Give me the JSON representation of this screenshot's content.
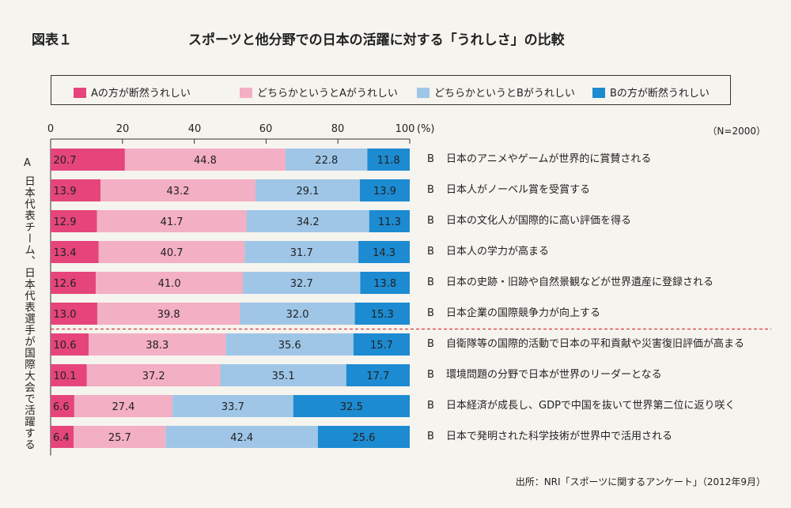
{
  "header": {
    "figure_label": "図表１",
    "title": "スポーツと他分野での日本の活躍に対する「うれしさ」の比較"
  },
  "chart_data": {
    "type": "bar",
    "orientation": "horizontal",
    "stacked": true,
    "percent_unit": "(%)",
    "n_label": "（N=2000）",
    "xlim": [
      0,
      100
    ],
    "ticks": [
      "0",
      "20",
      "40",
      "60",
      "80",
      "100"
    ],
    "legend": [
      {
        "name": "Aの方が断然うれしい",
        "color": "#e5457a"
      },
      {
        "name": "どちらかというとAがうれしい",
        "color": "#f3afc4"
      },
      {
        "name": "どちらかというとBがうれしい",
        "color": "#9fc6e7"
      },
      {
        "name": "Bの方が断然うれしい",
        "color": "#1c8bd1"
      }
    ],
    "a_letter": "A",
    "a_label": "日本代表チーム、日本代表選手が国際大会で活躍する",
    "b_letter": "B",
    "rows": [
      {
        "b_text": "日本のアニメやゲームが世界的に賞賛される",
        "values": [
          20.7,
          44.8,
          22.8,
          11.8
        ],
        "labels": [
          "20.7",
          "44.8",
          "22.8",
          "11.8"
        ]
      },
      {
        "b_text": "日本人がノーベル賞を受賞する",
        "values": [
          13.9,
          43.2,
          29.1,
          13.9
        ],
        "labels": [
          "13.9",
          "43.2",
          "29.1",
          "13.9"
        ]
      },
      {
        "b_text": "日本の文化人が国際的に高い評価を得る",
        "values": [
          12.9,
          41.7,
          34.2,
          11.3
        ],
        "labels": [
          "12.9",
          "41.7",
          "34.2",
          "11.3"
        ]
      },
      {
        "b_text": "日本人の学力が高まる",
        "values": [
          13.4,
          40.7,
          31.7,
          14.3
        ],
        "labels": [
          "13.4",
          "40.7",
          "31.7",
          "14.3"
        ]
      },
      {
        "b_text": "日本の史跡・旧跡や自然景観などが世界遺産に登録される",
        "values": [
          12.6,
          41.0,
          32.7,
          13.8
        ],
        "labels": [
          "12.6",
          "41.0",
          "32.7",
          "13.8"
        ]
      },
      {
        "b_text": "日本企業の国際競争力が向上する",
        "values": [
          13.0,
          39.8,
          32.0,
          15.3
        ],
        "labels": [
          "13.0",
          "39.8",
          "32.0",
          "15.3"
        ]
      },
      {
        "b_text": "自衛隊等の国際的活動で日本の平和貢献や災害復旧評価が高まる",
        "values": [
          10.6,
          38.3,
          35.6,
          15.7
        ],
        "labels": [
          "10.6",
          "38.3",
          "35.6",
          "15.7"
        ]
      },
      {
        "b_text": "環境問題の分野で日本が世界のリーダーとなる",
        "values": [
          10.1,
          37.2,
          35.1,
          17.7
        ],
        "labels": [
          "10.1",
          "37.2",
          "35.1",
          "17.7"
        ]
      },
      {
        "b_text": "日本経済が成長し、GDPで中国を抜いて世界第二位に返り咲く",
        "values": [
          6.6,
          27.4,
          33.7,
          32.5
        ],
        "labels": [
          "6.6",
          "27.4",
          "33.7",
          "32.5"
        ]
      },
      {
        "b_text": "日本で発明された科学技術が世界中で活用される",
        "values": [
          6.4,
          25.7,
          42.4,
          25.6
        ],
        "labels": [
          "6.4",
          "25.7",
          "42.4",
          "25.6"
        ]
      }
    ],
    "divider_after_row": 6,
    "source": "出所：NRI「スポーツに関するアンケート」（2012年9月）"
  }
}
